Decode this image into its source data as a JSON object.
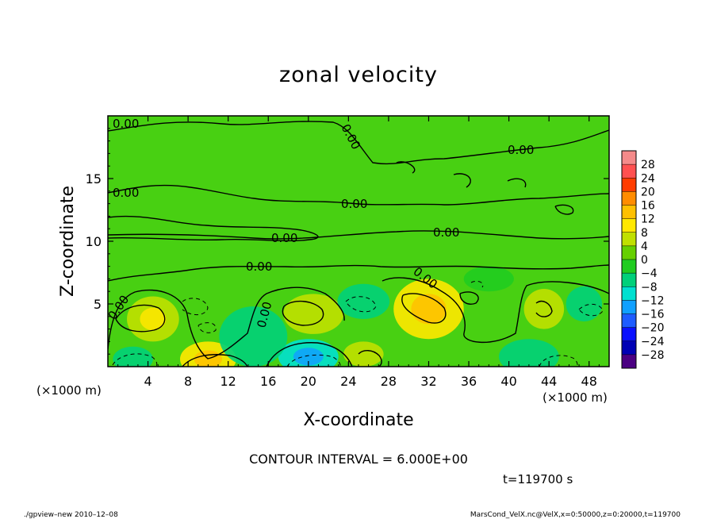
{
  "chart_data": {
    "type": "heatmap",
    "title": "zonal velocity",
    "xlabel": "X-coordinate",
    "ylabel": "Z-coordinate",
    "x_units": "(×1000 m)",
    "xlim": [
      0,
      50
    ],
    "ylim": [
      0,
      20
    ],
    "x_ticks": [
      4,
      8,
      12,
      16,
      20,
      24,
      28,
      32,
      36,
      40,
      44,
      48
    ],
    "y_ticks": [
      5,
      10,
      15
    ],
    "colorbar_levels": [
      28,
      24,
      20,
      16,
      12,
      8,
      4,
      0,
      -4,
      -8,
      -12,
      -16,
      -20,
      -24,
      -28
    ],
    "colorbar_colors": [
      "#f48a8a",
      "#ff5050",
      "#ff3c00",
      "#ff8c00",
      "#ffc000",
      "#ffe800",
      "#c0e000",
      "#66d000",
      "#20cc20",
      "#00d07a",
      "#00e0d0",
      "#10a0ff",
      "#1e5cff",
      "#0a10ff",
      "#0000b4",
      "#4b0082"
    ],
    "contour_label": "0.00",
    "contour_interval_text": "CONTOUR INTERVAL = 6.000E+00",
    "time_text": "t=119700 s",
    "footer_left": "./gpview–new  2010–12–08",
    "footer_right": "MarsCond_VelX.nc@VelX,x=0:50000,z=0:20000,t=119700",
    "field_blobs": [
      {
        "x": 4.5,
        "z": 3.8,
        "rx": 2.6,
        "rz": 1.8,
        "value": 8
      },
      {
        "x": 10,
        "z": 0.6,
        "rx": 2.8,
        "rz": 1.4,
        "value": 10
      },
      {
        "x": 20.5,
        "z": 4.2,
        "rx": 3.0,
        "rz": 1.6,
        "value": 6
      },
      {
        "x": 32,
        "z": 4.6,
        "rx": 3.5,
        "rz": 2.4,
        "value": 9
      },
      {
        "x": 43.5,
        "z": 4.6,
        "rx": 2.0,
        "rz": 1.6,
        "value": 5
      },
      {
        "x": 25.5,
        "z": 1.0,
        "rx": 2.0,
        "rz": 1.0,
        "value": 5
      },
      {
        "x": 2.5,
        "z": 0.6,
        "rx": 2.0,
        "rz": 1.0,
        "value": -6
      },
      {
        "x": 20,
        "z": 0.8,
        "rx": 3.0,
        "rz": 1.4,
        "value": -8
      },
      {
        "x": 25.5,
        "z": 5.2,
        "rx": 2.6,
        "rz": 1.4,
        "value": -6
      },
      {
        "x": 14.5,
        "z": 2.4,
        "rx": 3.4,
        "rz": 2.4,
        "value": -4
      },
      {
        "x": 42,
        "z": 0.8,
        "rx": 3.0,
        "rz": 1.4,
        "value": -6
      },
      {
        "x": 47.5,
        "z": 5.0,
        "rx": 1.8,
        "rz": 1.4,
        "value": -5
      },
      {
        "x": 38,
        "z": 7.0,
        "rx": 2.5,
        "rz": 1.0,
        "value": -3
      }
    ]
  }
}
